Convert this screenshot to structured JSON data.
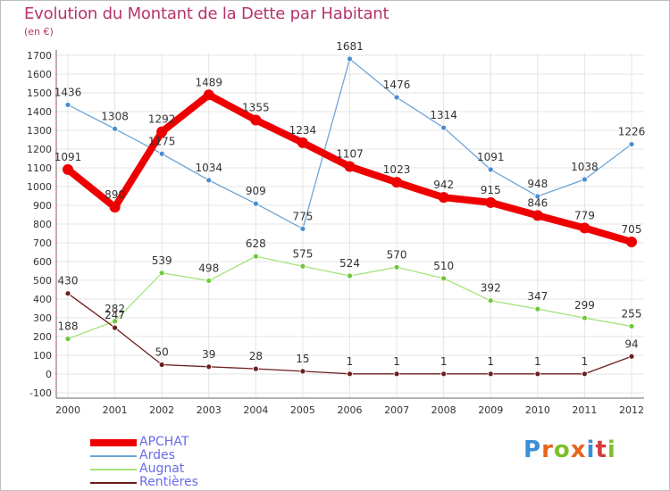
{
  "header": {
    "title": "Evolution du Montant de la Dette par Habitant",
    "subtitle": "(en €)"
  },
  "logo": {
    "text": "Proxiti",
    "colors": [
      "#3a8fd8",
      "#e8651c",
      "#7fbf2a",
      "#e8651c",
      "#3a8fd8",
      "#d63b3b",
      "#7fbf2a"
    ]
  },
  "colors": {
    "title": "#b5336a",
    "legend_text": "#6a6ae8",
    "grid": "#e4e4e4",
    "axis": "#333333"
  },
  "chart_data": {
    "type": "line",
    "title": "Evolution du Montant de la Dette par Habitant",
    "subtitle": "(en €)",
    "x": [
      2000,
      2001,
      2002,
      2003,
      2004,
      2005,
      2006,
      2007,
      2008,
      2009,
      2010,
      2011,
      2012
    ],
    "ylim": [
      -100,
      1700
    ],
    "yticks": [
      -100,
      0,
      100,
      200,
      300,
      400,
      500,
      600,
      700,
      800,
      900,
      1000,
      1100,
      1200,
      1300,
      1400,
      1500,
      1600,
      1700
    ],
    "grid": true,
    "legend_position": "bottom-left",
    "series": [
      {
        "name": "APCHAT",
        "color": "#ee0000",
        "marker": "#ee0000",
        "thick": true,
        "values": [
          1091,
          890,
          1292,
          1489,
          1355,
          1234,
          1107,
          1023,
          942,
          915,
          846,
          779,
          705
        ],
        "labels": [
          "1091",
          "890",
          "1292",
          "1489",
          "1355",
          "1234",
          "1107",
          "1023",
          "942",
          "915",
          "846",
          "779",
          "705"
        ]
      },
      {
        "name": "Ardes",
        "color": "#6ca6d8",
        "marker": "#4a8dd0",
        "thick": false,
        "values": [
          1436,
          1308,
          1175,
          1034,
          909,
          775,
          1681,
          1476,
          1314,
          1091,
          948,
          1038,
          1226
        ],
        "labels": [
          "1436",
          "1308",
          "1175",
          "1034",
          "909",
          "775",
          "1681",
          "1476",
          "1314",
          "1091",
          "948",
          "1038",
          "1226"
        ]
      },
      {
        "name": "Augnat",
        "color": "#a5e37a",
        "marker": "#6ec83a",
        "thick": false,
        "values": [
          188,
          282,
          539,
          498,
          628,
          575,
          524,
          570,
          510,
          392,
          347,
          299,
          255
        ],
        "labels": [
          "188",
          "282",
          "539",
          "498",
          "628",
          "575",
          "524",
          "570",
          "510",
          "392",
          "347",
          "299",
          "255"
        ]
      },
      {
        "name": "Rentières",
        "color": "#6b1f1f",
        "marker": "#6b1f1f",
        "thick": false,
        "values": [
          430,
          247,
          50,
          39,
          28,
          15,
          1,
          1,
          1,
          1,
          1,
          1,
          94
        ],
        "labels": [
          "430",
          "247",
          "50",
          "39",
          "28",
          "15",
          "1",
          "1",
          "1",
          "1",
          "1",
          "1",
          "94"
        ]
      }
    ]
  }
}
